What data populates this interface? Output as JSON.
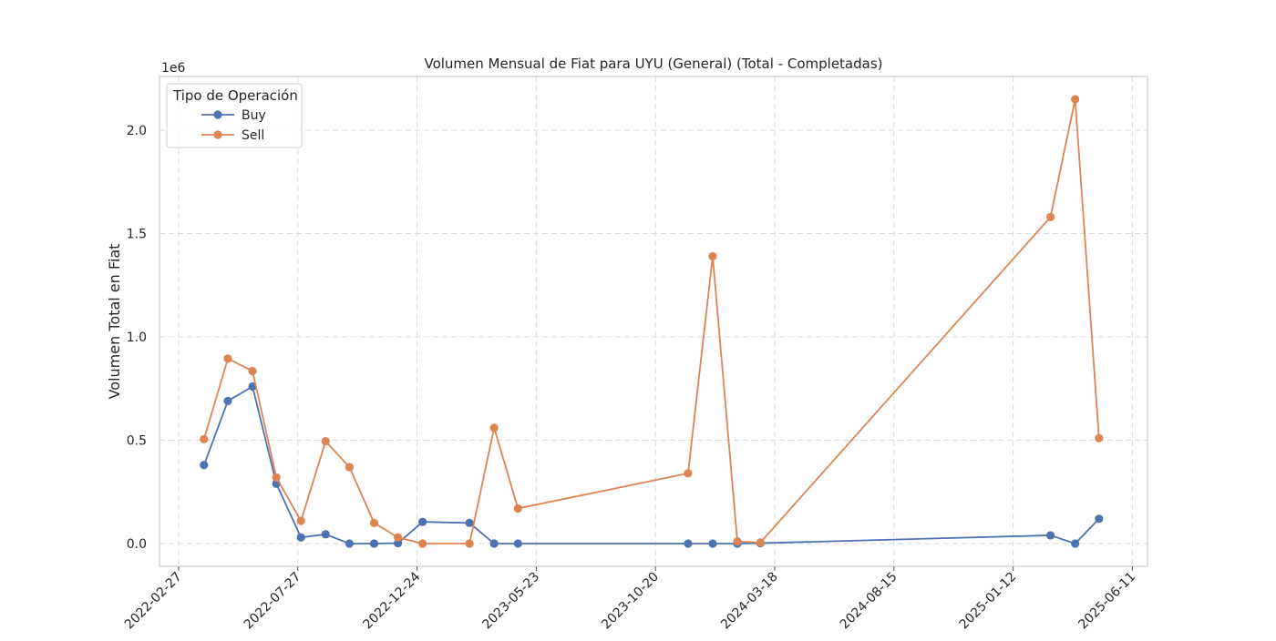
{
  "chart_data": {
    "type": "line",
    "title": "Volumen Mensual de Fiat para UYU (General) (Total - Completadas)",
    "xlabel": "",
    "ylabel": "Volumen Total en Fiat",
    "y_offset_label": "1e6",
    "x_axis_type": "date",
    "xlim": [
      "2022-02-03",
      "2025-06-30"
    ],
    "ylim": [
      -0.11,
      2.26
    ],
    "y_unit_multiplier": 1000000,
    "x_ticks": [
      "2022-02-27",
      "2022-07-27",
      "2022-12-24",
      "2023-05-23",
      "2023-10-20",
      "2024-03-18",
      "2024-08-15",
      "2025-01-12",
      "2025-06-11"
    ],
    "y_ticks": [
      0.0,
      0.5,
      1.0,
      1.5,
      2.0
    ],
    "y_tick_labels": [
      "0.0",
      "0.5",
      "1.0",
      "1.5",
      "2.0"
    ],
    "grid": true,
    "legend": {
      "title": "Tipo de Operación",
      "placement": "top-left"
    },
    "series": [
      {
        "name": "Buy",
        "color": "#4c72b0",
        "x": [
          "2022-03-31",
          "2022-04-30",
          "2022-05-31",
          "2022-06-30",
          "2022-07-31",
          "2022-08-31",
          "2022-09-30",
          "2022-10-31",
          "2022-11-30",
          "2022-12-31",
          "2023-02-28",
          "2023-03-31",
          "2023-04-30",
          "2023-11-30",
          "2023-12-31",
          "2024-01-31",
          "2024-02-29",
          "2025-02-28",
          "2025-03-31",
          "2025-04-30"
        ],
        "y": [
          0.38,
          0.69,
          0.76,
          0.29,
          0.03,
          0.045,
          0.0,
          0.0,
          0.002,
          0.105,
          0.1,
          0.0,
          0.0,
          0.0,
          0.0,
          0.0,
          0.002,
          0.04,
          0.0,
          0.12
        ]
      },
      {
        "name": "Sell",
        "color": "#dd8452",
        "x": [
          "2022-03-31",
          "2022-04-30",
          "2022-05-31",
          "2022-06-30",
          "2022-07-31",
          "2022-08-31",
          "2022-09-30",
          "2022-10-31",
          "2022-11-30",
          "2022-12-31",
          "2023-02-28",
          "2023-03-31",
          "2023-04-30",
          "2023-11-30",
          "2023-12-31",
          "2024-01-31",
          "2024-02-29",
          "2025-02-28",
          "2025-03-31",
          "2025-04-30"
        ],
        "y": [
          0.505,
          0.895,
          0.835,
          0.32,
          0.11,
          0.495,
          0.37,
          0.1,
          0.03,
          0.0,
          0.0,
          0.56,
          0.17,
          0.34,
          1.39,
          0.01,
          0.005,
          1.58,
          2.15,
          0.51
        ]
      }
    ]
  }
}
